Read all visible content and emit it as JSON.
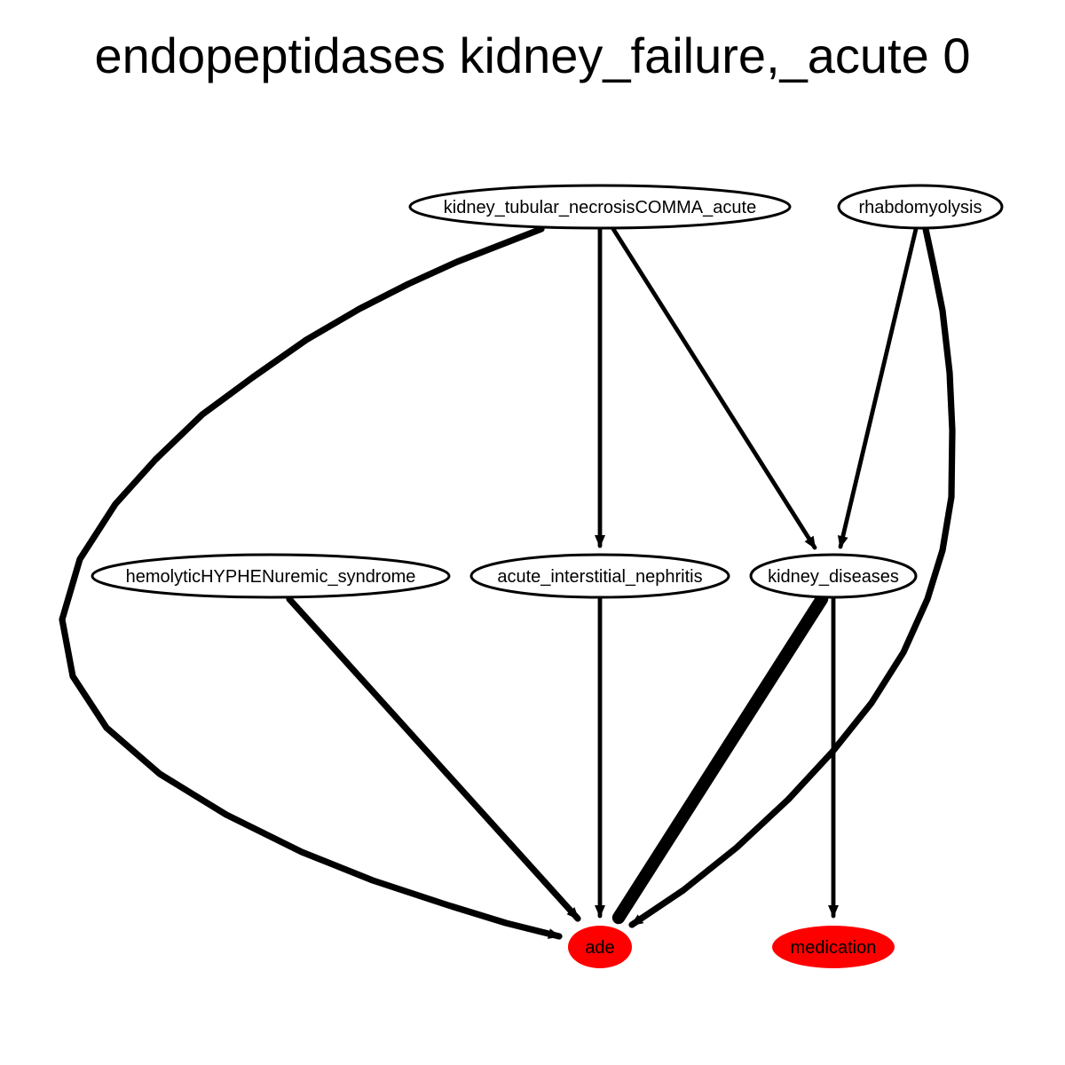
{
  "title": "endopeptidases kidney_failure,_acute 0",
  "colors": {
    "highlight_node_fill": "#ff0000",
    "node_fill": "#ffffff",
    "node_stroke": "#000000",
    "edge": "#000000",
    "background": "#ffffff"
  },
  "nodes": [
    {
      "id": "kidney_tubular_necrosisCOMMA_acute",
      "label": "kidney_tubular_necrosisCOMMA_acute",
      "highlighted": false
    },
    {
      "id": "rhabdomyolysis",
      "label": "rhabdomyolysis",
      "highlighted": false
    },
    {
      "id": "hemolyticHYPHENuremic_syndrome",
      "label": "hemolyticHYPHENuremic_syndrome",
      "highlighted": false
    },
    {
      "id": "acute_interstitial_nephritis",
      "label": "acute_interstitial_nephritis",
      "highlighted": false
    },
    {
      "id": "kidney_diseases",
      "label": "kidney_diseases",
      "highlighted": false
    },
    {
      "id": "ade",
      "label": "ade",
      "highlighted": true
    },
    {
      "id": "medication",
      "label": "medication",
      "highlighted": true
    }
  ],
  "edges": [
    {
      "from": "kidney_tubular_necrosisCOMMA_acute",
      "to": "ade",
      "weight": 3
    },
    {
      "from": "kidney_tubular_necrosisCOMMA_acute",
      "to": "acute_interstitial_nephritis",
      "weight": 2
    },
    {
      "from": "kidney_tubular_necrosisCOMMA_acute",
      "to": "kidney_diseases",
      "weight": 2
    },
    {
      "from": "rhabdomyolysis",
      "to": "kidney_diseases",
      "weight": 2
    },
    {
      "from": "rhabdomyolysis",
      "to": "ade",
      "weight": 3
    },
    {
      "from": "hemolyticHYPHENuremic_syndrome",
      "to": "ade",
      "weight": 3
    },
    {
      "from": "acute_interstitial_nephritis",
      "to": "ade",
      "weight": 2
    },
    {
      "from": "kidney_diseases",
      "to": "ade",
      "weight": 6
    },
    {
      "from": "kidney_diseases",
      "to": "medication",
      "weight": 2
    }
  ]
}
